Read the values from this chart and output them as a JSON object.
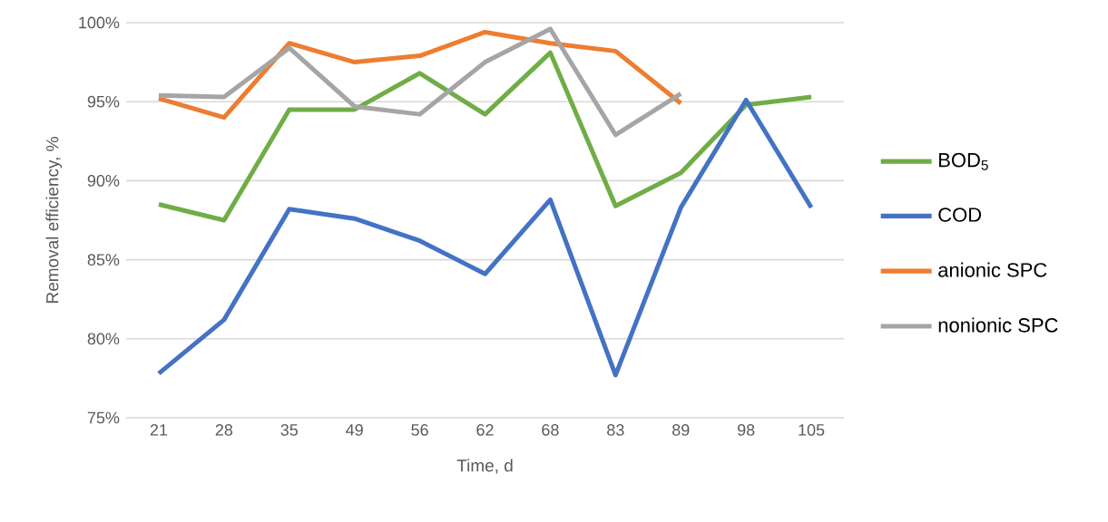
{
  "chart_data": {
    "type": "line",
    "xlabel": "Time, d",
    "ylabel": "Removal efficiency, %",
    "categories": [
      "21",
      "28",
      "35",
      "49",
      "56",
      "62",
      "68",
      "83",
      "89",
      "98",
      "105"
    ],
    "series": [
      {
        "name": "BOD$_{5}$",
        "color": "#70ad47",
        "values": [
          88.5,
          87.5,
          94.5,
          94.5,
          96.8,
          94.2,
          98.1,
          88.4,
          90.5,
          94.8,
          95.3
        ]
      },
      {
        "name": "COD",
        "color": "#4472c4",
        "values": [
          77.8,
          81.2,
          88.2,
          87.6,
          86.2,
          84.1,
          88.8,
          77.7,
          88.3,
          95.1,
          88.3
        ]
      },
      {
        "name": "anionic SPC",
        "color": "#ed7d31",
        "values": [
          95.2,
          94.0,
          98.7,
          97.5,
          97.9,
          99.4,
          98.7,
          98.2,
          94.9,
          null,
          null
        ]
      },
      {
        "name": "nonionic SPC",
        "color": "#a5a5a5",
        "values": [
          95.4,
          95.3,
          98.4,
          94.7,
          94.2,
          97.5,
          99.6,
          92.9,
          95.5,
          null,
          null
        ]
      }
    ],
    "ylim": [
      75,
      100
    ],
    "yticks": [
      {
        "value": 75,
        "label": "75%"
      },
      {
        "value": 80,
        "label": "80%"
      },
      {
        "value": 85,
        "label": "85%"
      },
      {
        "value": 90,
        "label": "90%"
      },
      {
        "value": 95,
        "label": "95%"
      },
      {
        "value": 100,
        "label": "100%"
      }
    ],
    "grid": "y",
    "legend": "right",
    "line_style": "solid"
  }
}
